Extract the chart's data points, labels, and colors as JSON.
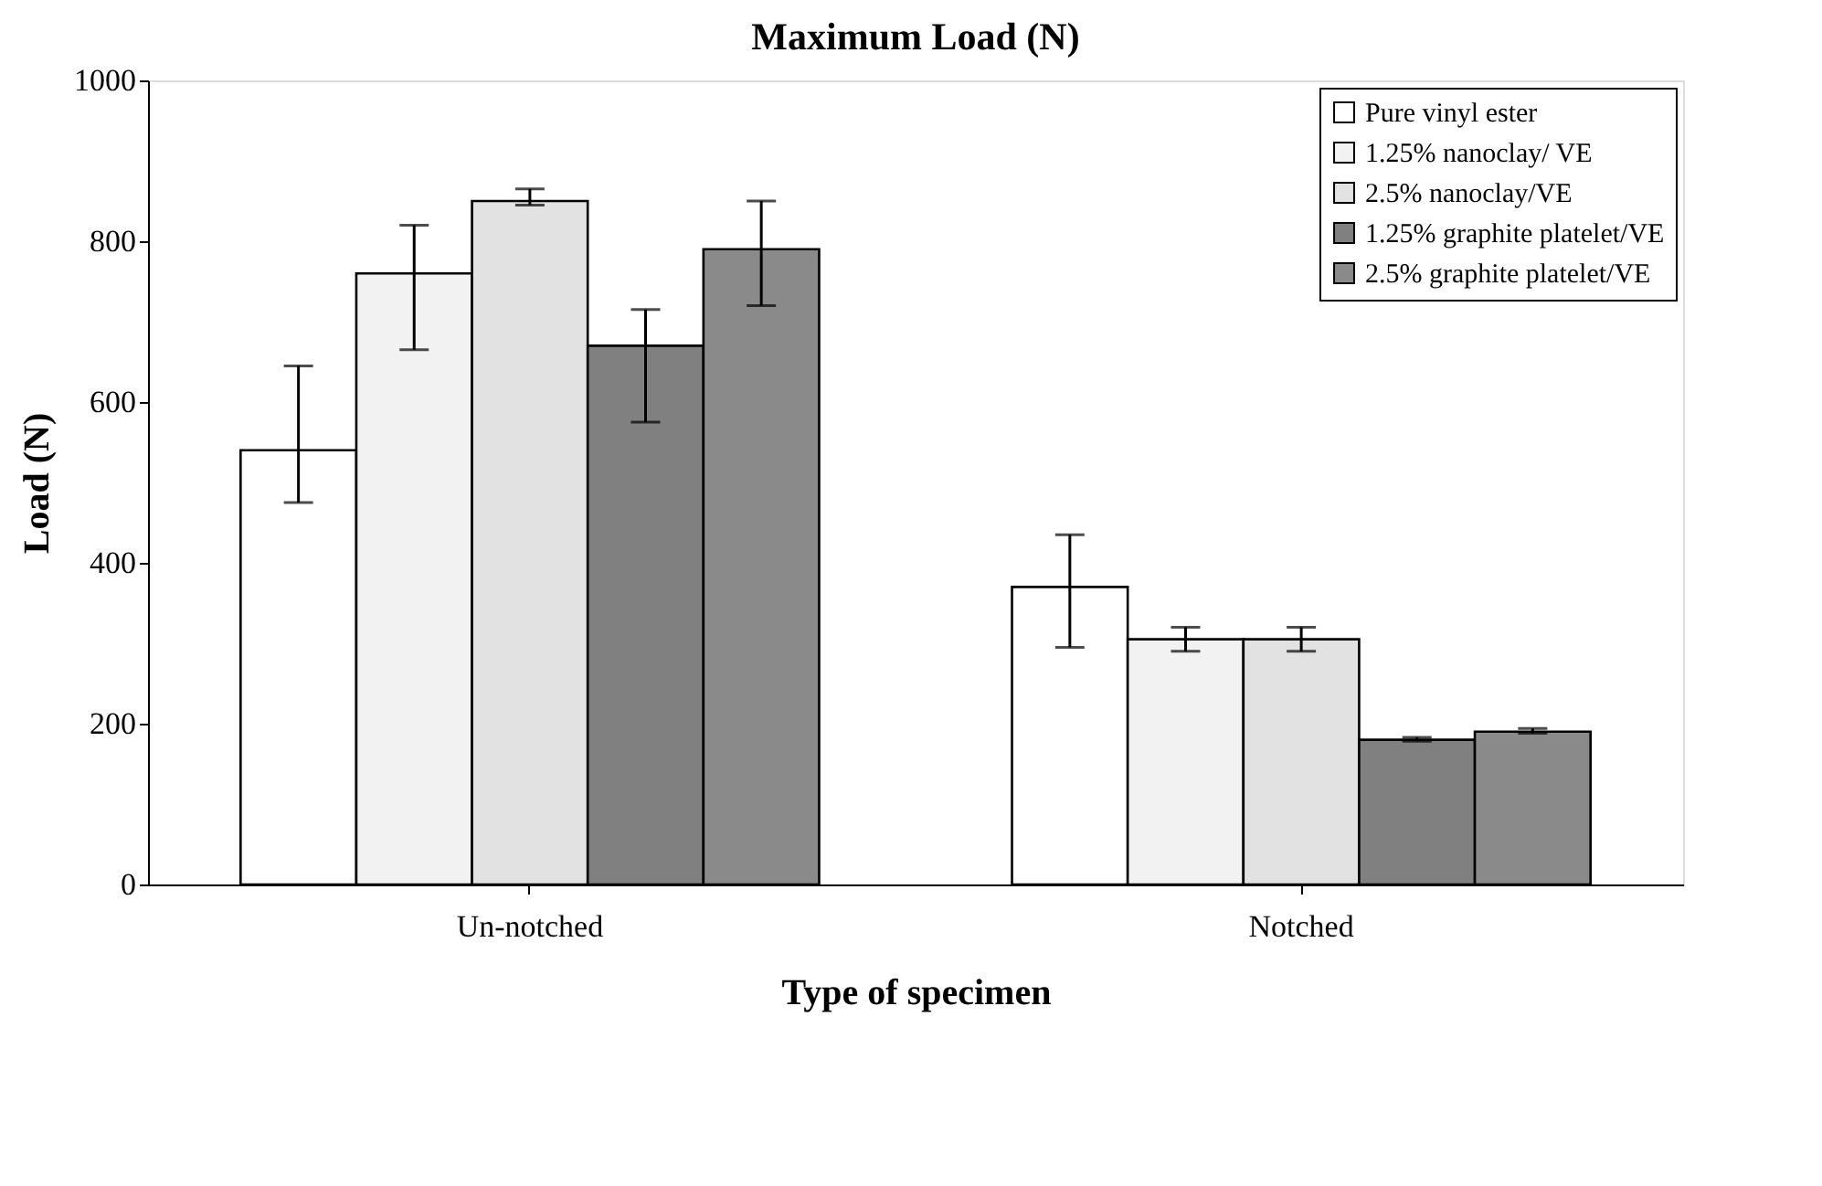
{
  "chart_data": {
    "type": "bar",
    "title": "Maximum Load (N)",
    "xlabel": "Type of specimen",
    "ylabel": "Load (N)",
    "categories": [
      "Un-notched",
      "Notched"
    ],
    "series": [
      {
        "name": "Pure vinyl ester",
        "color": "#ffffff",
        "values": [
          540,
          370
        ],
        "errors": [
          [
            475,
            645
          ],
          [
            295,
            435
          ]
        ]
      },
      {
        "name": "1.25% nanoclay/ VE",
        "color": "#f2f2f2",
        "values": [
          760,
          305
        ],
        "errors": [
          [
            665,
            820
          ],
          [
            290,
            320
          ]
        ]
      },
      {
        "name": "2.5% nanoclay/VE",
        "color": "#e2e2e2",
        "values": [
          850,
          305
        ],
        "errors": [
          [
            845,
            865
          ],
          [
            290,
            320
          ]
        ]
      },
      {
        "name": "1.25% graphite platelet/VE",
        "color": "#808080",
        "values": [
          670,
          180
        ],
        "errors": [
          [
            575,
            715
          ],
          [
            178,
            183
          ]
        ]
      },
      {
        "name": "2.5% graphite platelet/VE",
        "color": "#8a8a8a",
        "values": [
          790,
          190
        ],
        "errors": [
          [
            720,
            850
          ],
          [
            188,
            194
          ]
        ]
      }
    ],
    "ylim": [
      0,
      1000
    ],
    "yticks": [
      0,
      200,
      400,
      600,
      800,
      1000
    ],
    "grid": false,
    "legend": "top right"
  }
}
